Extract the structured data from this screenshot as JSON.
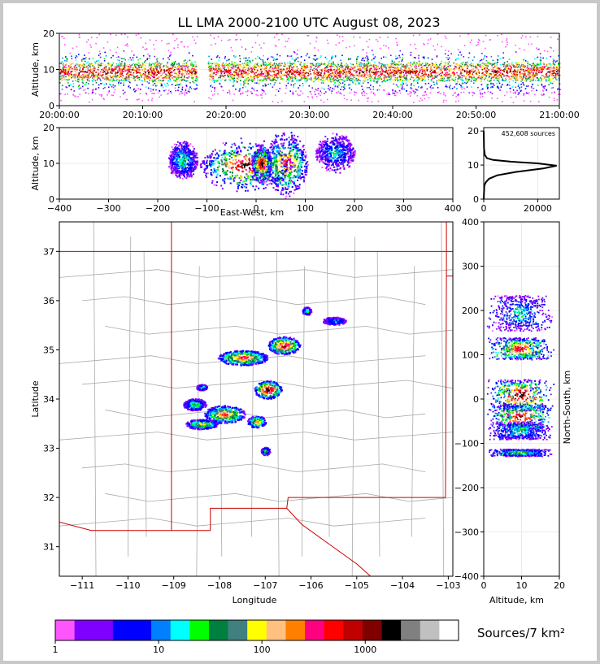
{
  "title": "LL LMA 2000-2100 UTC August 08, 2023",
  "colors": {
    "colorbar": [
      "#ff55ff",
      "#8000ff",
      "#8000ff",
      "#0000ff",
      "#0000ff",
      "#0080ff",
      "#00ffff",
      "#00ff00",
      "#008040",
      "#408080",
      "#ffff00",
      "#ffc080",
      "#ff8000",
      "#ff0080",
      "#ff0000",
      "#c00000",
      "#800000",
      "#000000",
      "#808080",
      "#c0c0c0",
      "#ffffff"
    ],
    "state_border": "#cc0000",
    "county_lines": "#aaaaaa"
  },
  "chart_data": [
    {
      "id": "time-height",
      "type": "heatmap",
      "ylabel": "Altitude, km",
      "xlabel": "",
      "yticks": [
        "0",
        "10",
        "20"
      ],
      "xticks": [
        "20:00:00",
        "20:10:00",
        "20:20:00",
        "20:30:00",
        "20:40:00",
        "20:50:00",
        "21:00:00"
      ],
      "ylim": [
        0,
        20
      ],
      "xlim_minutes": [
        0,
        60
      ],
      "data_gap_minutes": [
        16.5,
        17.8
      ],
      "core_altitude_km": [
        7,
        12
      ]
    },
    {
      "id": "east-west-altitude",
      "type": "heatmap",
      "ylabel": "Altitude, km",
      "xlabel": "East-West, km",
      "xticks": [
        "−400",
        "−300",
        "−200",
        "−100",
        "0",
        "100",
        "200",
        "300",
        "400"
      ],
      "yticks": [
        "0",
        "10",
        "20"
      ],
      "xlim": [
        -400,
        400
      ],
      "ylim": [
        0,
        20
      ]
    },
    {
      "id": "altitude-histogram",
      "type": "line",
      "annotation": "452,608 sources",
      "xticks": [
        "0",
        "20000"
      ],
      "yticks": [
        "0",
        "10",
        "20"
      ],
      "xlim": [
        0,
        28000
      ],
      "ylim": [
        0,
        21
      ],
      "profile": [
        {
          "alt": 0,
          "count": 0
        },
        {
          "alt": 4,
          "count": 200
        },
        {
          "alt": 5,
          "count": 800
        },
        {
          "alt": 6,
          "count": 2000
        },
        {
          "alt": 7,
          "count": 5000
        },
        {
          "alt": 8,
          "count": 12000
        },
        {
          "alt": 9,
          "count": 22000
        },
        {
          "alt": 9.8,
          "count": 27000
        },
        {
          "alt": 10.5,
          "count": 20000
        },
        {
          "alt": 11,
          "count": 10000
        },
        {
          "alt": 11.5,
          "count": 3500
        },
        {
          "alt": 12,
          "count": 1200
        },
        {
          "alt": 13,
          "count": 400
        },
        {
          "alt": 15,
          "count": 100
        },
        {
          "alt": 20,
          "count": 0
        }
      ]
    },
    {
      "id": "plan-view",
      "type": "heatmap",
      "xlabel": "Longitude",
      "ylabel": "Latitude",
      "xticks": [
        "−111",
        "−110",
        "−109",
        "−108",
        "−107",
        "−106",
        "−105",
        "−104",
        "−103"
      ],
      "yticks": [
        "31",
        "32",
        "33",
        "34",
        "35",
        "36",
        "37"
      ],
      "xlim": [
        -111.5,
        -102.9
      ],
      "ylim": [
        30.4,
        37.6
      ],
      "clusters": [
        {
          "lon": -107.5,
          "lat": 34.85,
          "rlon": 0.55,
          "rlat": 0.15,
          "peak": 0.8
        },
        {
          "lon": -106.6,
          "lat": 35.1,
          "rlon": 0.35,
          "rlat": 0.18,
          "peak": 0.9
        },
        {
          "lon": -106.95,
          "lat": 34.2,
          "rlon": 0.3,
          "rlat": 0.18,
          "peak": 1.0
        },
        {
          "lon": -107.9,
          "lat": 33.7,
          "rlon": 0.45,
          "rlat": 0.18,
          "peak": 0.75
        },
        {
          "lon": -107.2,
          "lat": 33.55,
          "rlon": 0.2,
          "rlat": 0.12,
          "peak": 0.7
        },
        {
          "lon": -108.4,
          "lat": 33.5,
          "rlon": 0.35,
          "rlat": 0.1,
          "peak": 0.6
        },
        {
          "lon": -108.55,
          "lat": 33.9,
          "rlon": 0.25,
          "rlat": 0.12,
          "peak": 0.45
        },
        {
          "lon": -106.1,
          "lat": 35.8,
          "rlon": 0.1,
          "rlat": 0.08,
          "peak": 0.4
        },
        {
          "lon": -107.0,
          "lat": 32.95,
          "rlon": 0.1,
          "rlat": 0.08,
          "peak": 0.45
        },
        {
          "lon": -105.5,
          "lat": 35.6,
          "rlon": 0.25,
          "rlat": 0.08,
          "peak": 0.3
        },
        {
          "lon": -108.4,
          "lat": 34.25,
          "rlon": 0.12,
          "rlat": 0.06,
          "peak": 0.4
        }
      ]
    },
    {
      "id": "altitude-north-south",
      "type": "heatmap",
      "xlabel": "Altitude, km",
      "ylabel": "North-South, km",
      "xticks": [
        "0",
        "10",
        "20"
      ],
      "yticks": [
        "−400",
        "−300",
        "−200",
        "−100",
        "0",
        "100",
        "200",
        "300",
        "400"
      ],
      "xlim": [
        0,
        20
      ],
      "ylim": [
        -400,
        400
      ]
    },
    {
      "id": "colorbar",
      "type": "table",
      "label": "Sources/7 km²",
      "ticks": [
        "1",
        "10",
        "100",
        "1000"
      ],
      "tick_values": [
        1,
        10,
        100,
        1000
      ],
      "range": [
        1,
        8000
      ]
    }
  ]
}
